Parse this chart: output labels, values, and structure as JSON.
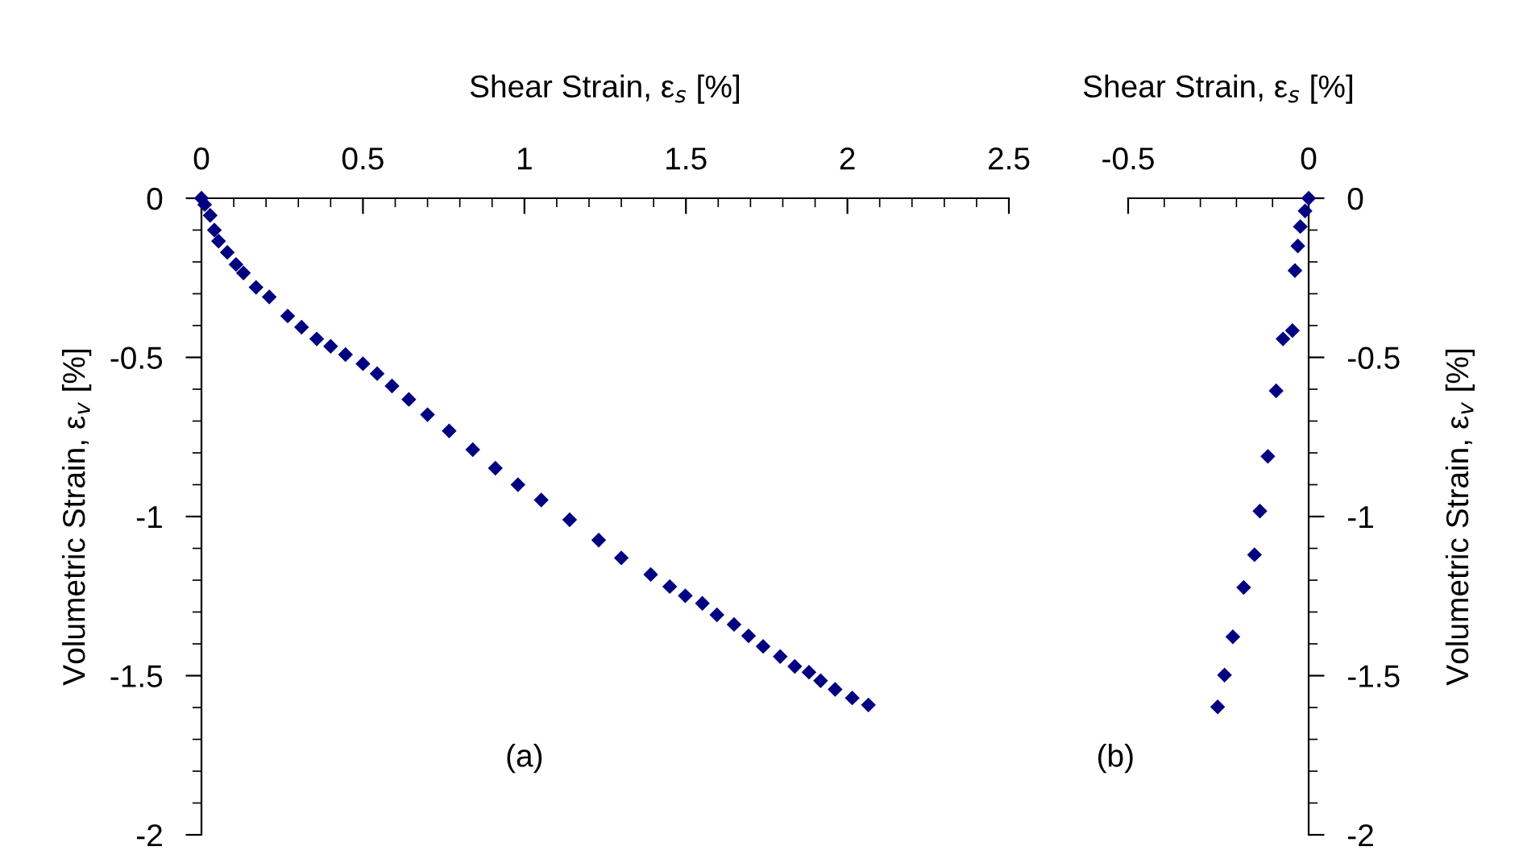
{
  "chart_data": [
    {
      "type": "scatter",
      "xlabel": "Shear Strain, ε$_{s}$ [%]",
      "ylabel": "Volumetric Strain, ε$_{v}$ [%]",
      "annotations": [
        "(a)"
      ],
      "marker": "diamond",
      "grid": false,
      "xlim": [
        0,
        2.5
      ],
      "ylim": [
        -2,
        0
      ],
      "xticks": [
        0,
        {
          "value": 0.1,
          "label": null
        },
        {
          "value": 0.2,
          "label": null
        },
        {
          "value": 0.3,
          "label": null
        },
        {
          "value": 0.4,
          "label": null
        },
        0.5,
        {
          "value": 0.6,
          "label": null
        },
        {
          "value": 0.7,
          "label": null
        },
        {
          "value": 0.8,
          "label": null
        },
        {
          "value": 0.9,
          "label": null
        },
        1,
        {
          "value": 1.1,
          "label": null
        },
        {
          "value": 1.2,
          "label": null
        },
        {
          "value": 1.3,
          "label": null
        },
        {
          "value": 1.4,
          "label": null
        },
        1.5,
        {
          "value": 1.6,
          "label": null
        },
        {
          "value": 1.7,
          "label": null
        },
        {
          "value": 1.8,
          "label": null
        },
        {
          "value": 1.9,
          "label": null
        },
        2,
        {
          "value": 2.1,
          "label": null
        },
        {
          "value": 2.2,
          "label": null
        },
        {
          "value": 2.3,
          "label": null
        },
        {
          "value": 2.4,
          "label": null
        },
        2.5
      ],
      "yticks": [
        0,
        {
          "value": -0.1,
          "label": null
        },
        {
          "value": -0.2,
          "label": null
        },
        {
          "value": -0.3,
          "label": null
        },
        {
          "value": -0.4,
          "label": null
        },
        -0.5,
        {
          "value": -0.6,
          "label": null
        },
        {
          "value": -0.7,
          "label": null
        },
        {
          "value": -0.8,
          "label": null
        },
        {
          "value": -0.9,
          "label": null
        },
        -1,
        {
          "value": -1.1,
          "label": null
        },
        {
          "value": -1.2,
          "label": null
        },
        {
          "value": -1.3,
          "label": null
        },
        {
          "value": -1.4,
          "label": null
        },
        -1.5,
        {
          "value": -1.6,
          "label": null
        },
        {
          "value": -1.7,
          "label": null
        },
        {
          "value": -1.8,
          "label": null
        },
        {
          "value": -1.9,
          "label": null
        },
        -2
      ],
      "series": [
        {
          "color": "#000080",
          "x": [
            0,
            0.01,
            0.027,
            0.04,
            0.053,
            0.08,
            0.107,
            0.13,
            0.169,
            0.21,
            0.267,
            0.31,
            0.357,
            0.4,
            0.446,
            0.5,
            0.544,
            0.59,
            0.642,
            0.7,
            0.767,
            0.84,
            0.91,
            0.98,
            1.052,
            1.14,
            1.23,
            1.3,
            1.391,
            1.45,
            1.498,
            1.551,
            1.596,
            1.649,
            1.694,
            1.739,
            1.792,
            1.837,
            1.881,
            1.917,
            1.962,
            2.015,
            2.065
          ],
          "values": [
            0,
            -0.02,
            -0.054,
            -0.1,
            -0.135,
            -0.17,
            -0.208,
            -0.235,
            -0.28,
            -0.31,
            -0.37,
            -0.405,
            -0.442,
            -0.465,
            -0.491,
            -0.52,
            -0.551,
            -0.59,
            -0.632,
            -0.68,
            -0.731,
            -0.79,
            -0.848,
            -0.9,
            -0.948,
            -1.01,
            -1.074,
            -1.13,
            -1.182,
            -1.22,
            -1.249,
            -1.273,
            -1.309,
            -1.339,
            -1.375,
            -1.408,
            -1.44,
            -1.471,
            -1.489,
            -1.516,
            -1.543,
            -1.57,
            -1.592
          ]
        }
      ]
    },
    {
      "type": "scatter",
      "xlabel": "Shear Strain, ε$_{s}$ [%]",
      "ylabel": "Volumetric Strain, ε$_{v}$ [%]",
      "annotations": [
        "(b)"
      ],
      "marker": "diamond",
      "grid": false,
      "xlim": [
        -0.5,
        0
      ],
      "ylim": [
        -2,
        0
      ],
      "xticks": [
        -0.5,
        {
          "value": -0.4,
          "label": null
        },
        {
          "value": -0.3,
          "label": null
        },
        {
          "value": -0.2,
          "label": null
        },
        {
          "value": -0.1,
          "label": null
        },
        0
      ],
      "yticks": [
        0,
        {
          "value": -0.1,
          "label": null
        },
        {
          "value": -0.2,
          "label": null
        },
        {
          "value": -0.3,
          "label": null
        },
        {
          "value": -0.4,
          "label": null
        },
        -0.5,
        {
          "value": -0.6,
          "label": null
        },
        {
          "value": -0.7,
          "label": null
        },
        {
          "value": -0.8,
          "label": null
        },
        {
          "value": -0.9,
          "label": null
        },
        -1,
        {
          "value": -1.1,
          "label": null
        },
        {
          "value": -1.2,
          "label": null
        },
        {
          "value": -1.3,
          "label": null
        },
        {
          "value": -1.4,
          "label": null
        },
        -1.5,
        {
          "value": -1.6,
          "label": null
        },
        {
          "value": -1.7,
          "label": null
        },
        {
          "value": -1.8,
          "label": null
        },
        {
          "value": -1.9,
          "label": null
        },
        -2
      ],
      "series": [
        {
          "color": "#000080",
          "x": [
            0,
            -0.01,
            -0.023,
            -0.03,
            -0.038,
            -0.045,
            -0.071,
            -0.09,
            -0.113,
            -0.135,
            -0.15,
            -0.18,
            -0.21,
            -0.233,
            -0.252
          ],
          "values": [
            0,
            -0.04,
            -0.089,
            -0.15,
            -0.227,
            -0.416,
            -0.442,
            -0.605,
            -0.811,
            -0.983,
            -1.12,
            -1.223,
            -1.378,
            -1.498,
            -1.598
          ]
        }
      ]
    }
  ]
}
